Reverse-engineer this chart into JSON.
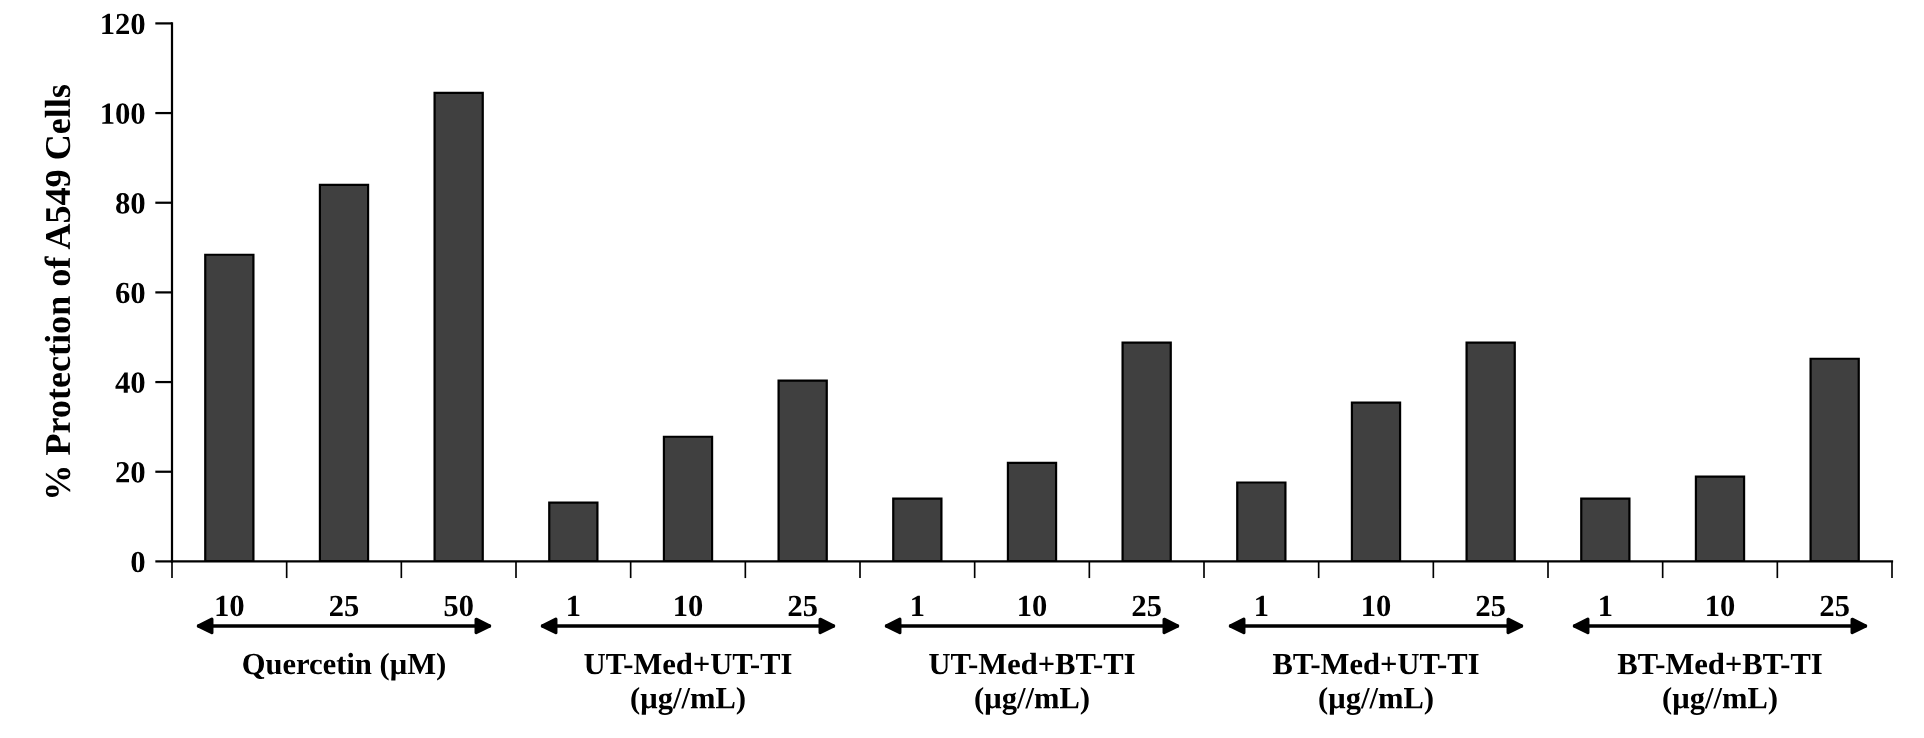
{
  "chart_data": {
    "type": "bar",
    "ylabel": "% Protection of A549 Cells",
    "categories": [
      "10",
      "25",
      "50",
      "1",
      "10",
      "25",
      "1",
      "10",
      "25",
      "1",
      "10",
      "25",
      "1",
      "10",
      "25"
    ],
    "values": [
      68.4,
      84.0,
      104.5,
      13.1,
      27.8,
      40.3,
      14.0,
      22.0,
      48.8,
      17.6,
      35.4,
      48.8,
      14.0,
      18.9,
      45.2
    ],
    "color": "#404040",
    "ylim": [
      0,
      120
    ],
    "yticks": [
      0,
      20,
      40,
      60,
      80,
      100,
      120
    ],
    "grid": false,
    "legend": false,
    "annotations": [
      "Quercetin (µM)",
      "UT-Med+UT-TI\n(µg//mL)",
      "UT-Med+BT-TI\n(µg//mL)",
      "BT-Med+UT-TI\n(µg//mL)",
      "BT-Med+BT-TI\n(µg//mL)"
    ]
  }
}
